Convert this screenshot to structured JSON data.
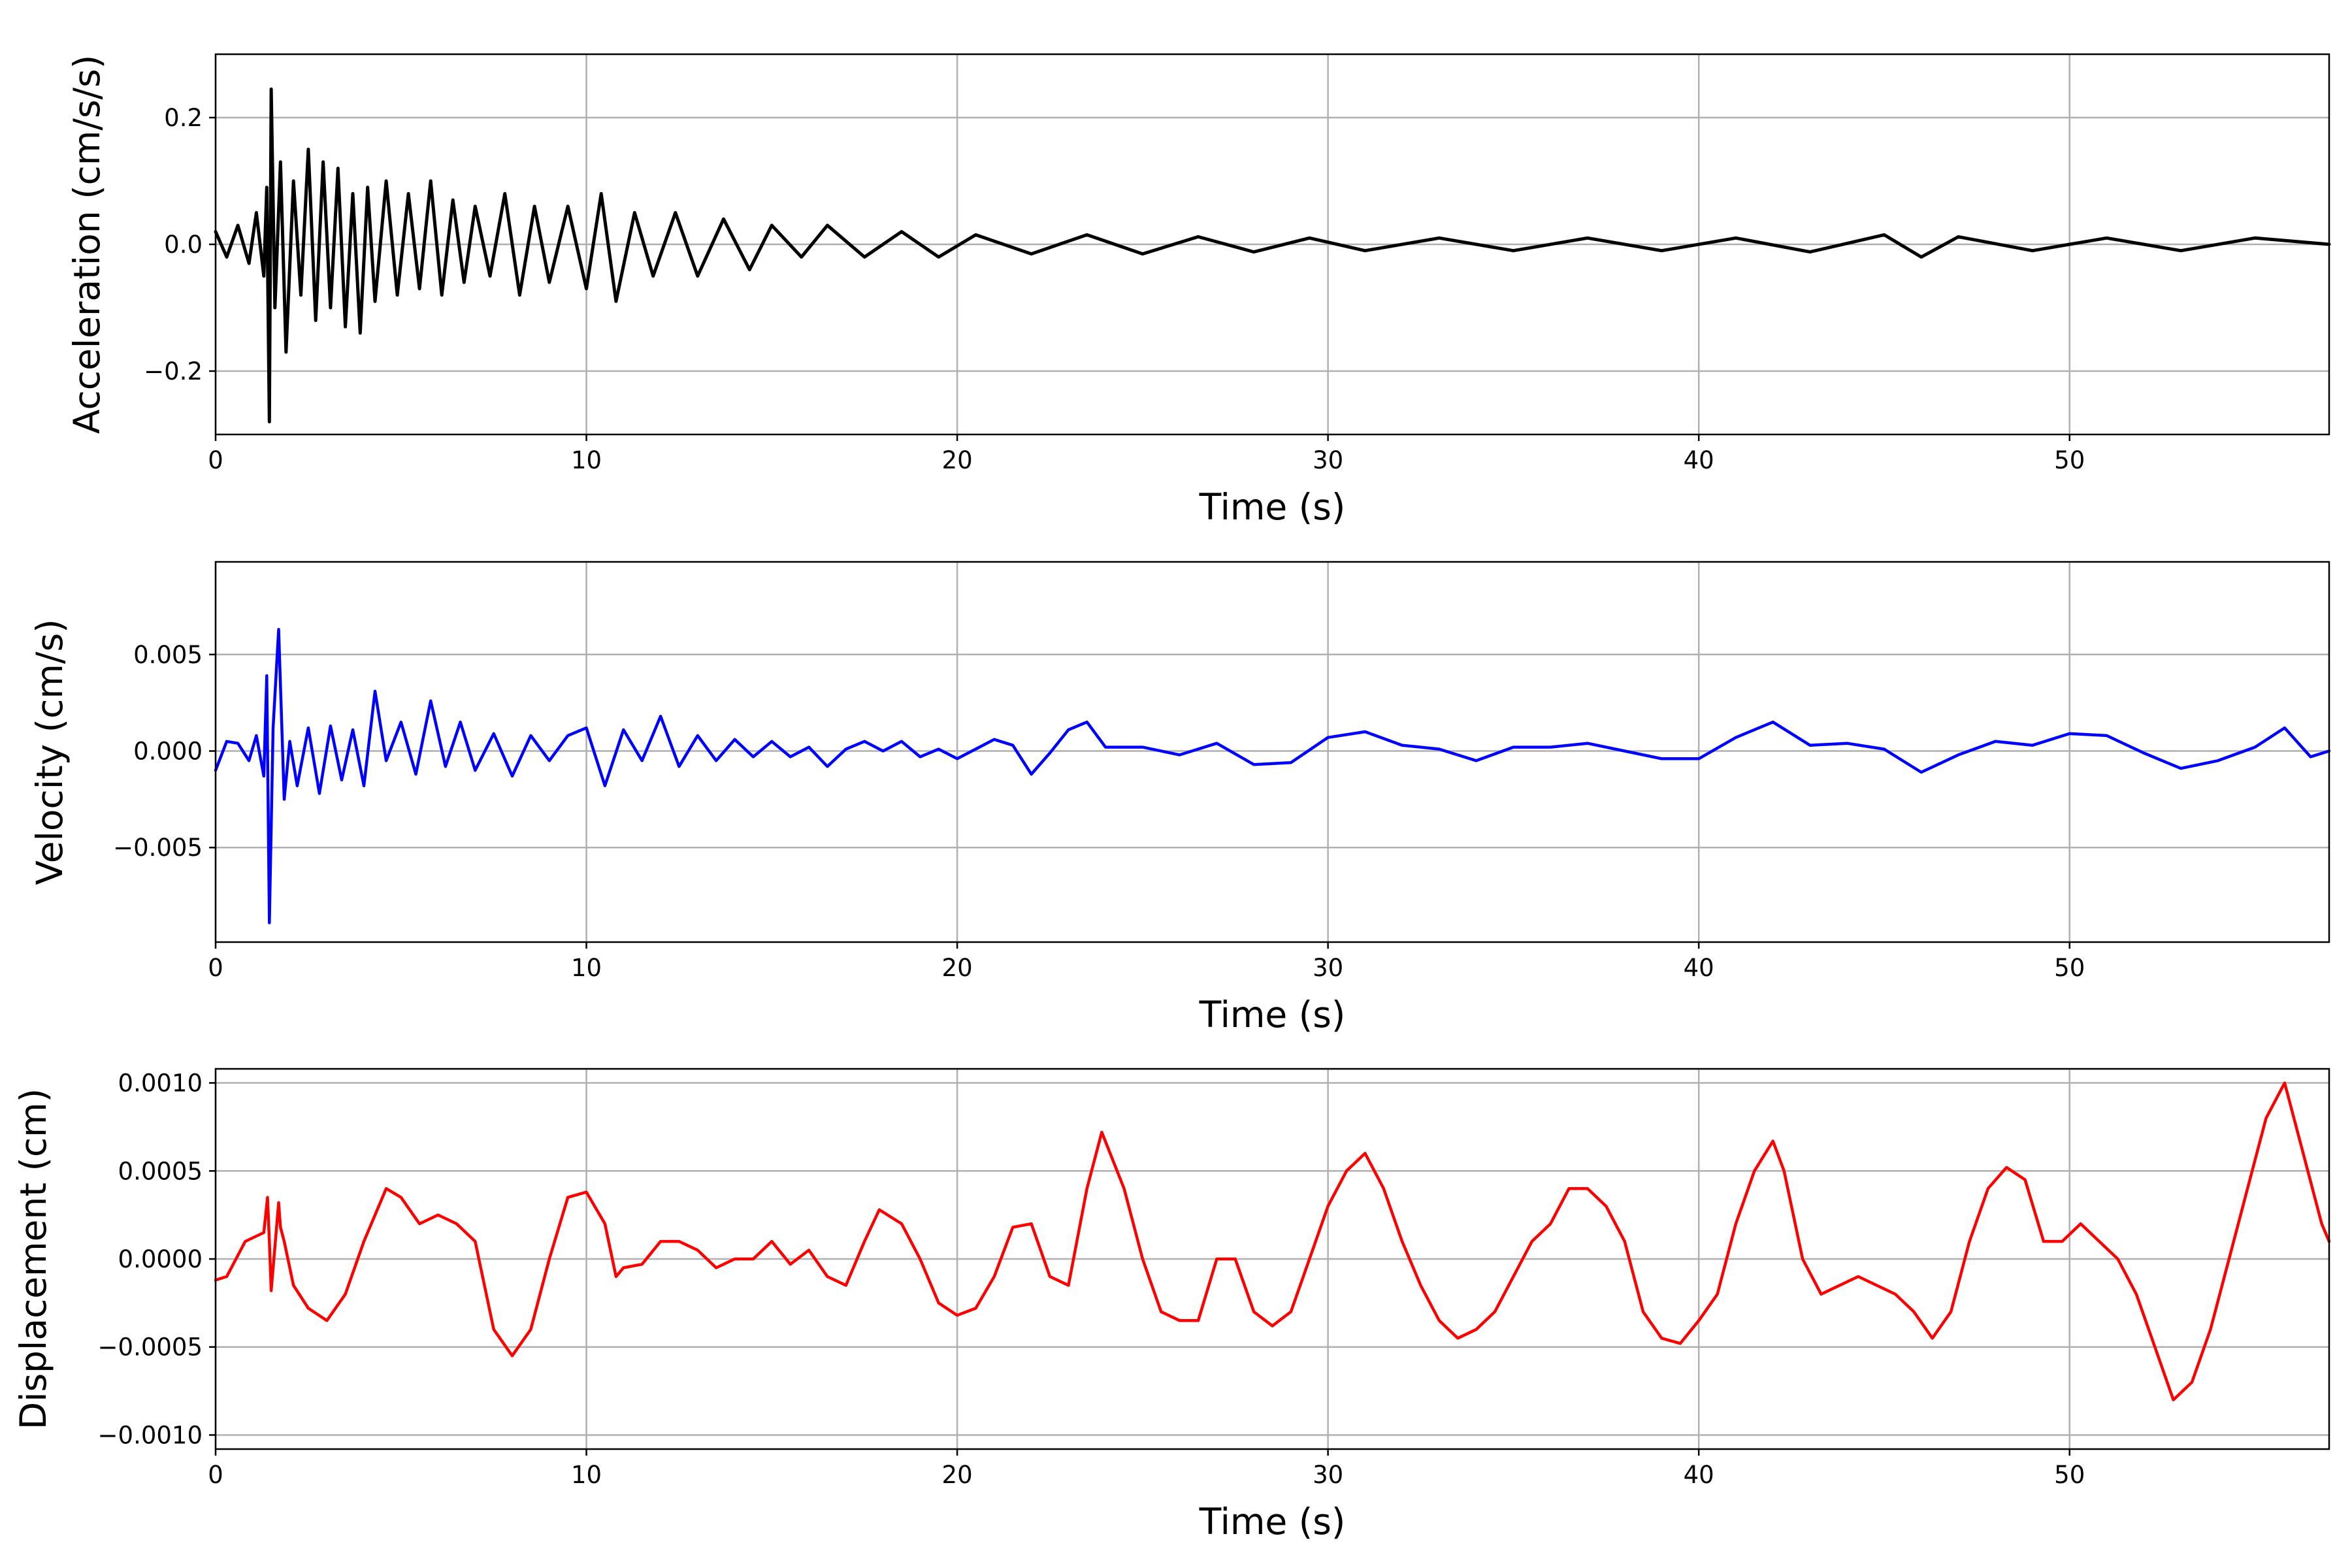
{
  "chart_data": [
    {
      "type": "line",
      "xlabel": "Time (s)",
      "ylabel": "Acceleration (cm/s/s)",
      "xlim": [
        0,
        57
      ],
      "ylim": [
        -0.3,
        0.3
      ],
      "xticks": [
        0,
        10,
        20,
        30,
        40,
        50
      ],
      "yticks": [
        -0.2,
        0.0,
        0.2
      ],
      "ytick_labels": [
        "−0.2",
        "0.0",
        "0.2"
      ],
      "grid": true,
      "color": "#000000",
      "series": [
        {
          "x": [
            0,
            0.3,
            0.6,
            0.9,
            1.1,
            1.3,
            1.38,
            1.45,
            1.5,
            1.6,
            1.75,
            1.9,
            2.1,
            2.3,
            2.5,
            2.7,
            2.9,
            3.1,
            3.3,
            3.5,
            3.7,
            3.9,
            4.1,
            4.3,
            4.6,
            4.9,
            5.2,
            5.5,
            5.8,
            6.1,
            6.4,
            6.7,
            7.0,
            7.4,
            7.8,
            8.2,
            8.6,
            9.0,
            9.5,
            10.0,
            10.4,
            10.8,
            11.3,
            11.8,
            12.4,
            13.0,
            13.7,
            14.4,
            15.0,
            15.8,
            16.5,
            17.5,
            18.5,
            19.5,
            20.5,
            22.0,
            23.5,
            25.0,
            26.5,
            28.0,
            29.5,
            31.0,
            33.0,
            35.0,
            37.0,
            39.0,
            41.0,
            43.0,
            45.0,
            46.0,
            47.0,
            49.0,
            51.0,
            53.0,
            55.0,
            57.0
          ],
          "y": [
            0.02,
            -0.02,
            0.03,
            -0.03,
            0.05,
            -0.05,
            0.09,
            -0.28,
            0.245,
            -0.1,
            0.13,
            -0.17,
            0.1,
            -0.08,
            0.15,
            -0.12,
            0.13,
            -0.1,
            0.12,
            -0.13,
            0.08,
            -0.14,
            0.09,
            -0.09,
            0.1,
            -0.08,
            0.08,
            -0.07,
            0.1,
            -0.08,
            0.07,
            -0.06,
            0.06,
            -0.05,
            0.08,
            -0.08,
            0.06,
            -0.06,
            0.06,
            -0.07,
            0.08,
            -0.09,
            0.05,
            -0.05,
            0.05,
            -0.05,
            0.04,
            -0.04,
            0.03,
            -0.02,
            0.03,
            -0.02,
            0.02,
            -0.02,
            0.015,
            -0.015,
            0.015,
            -0.015,
            0.012,
            -0.012,
            0.01,
            -0.01,
            0.01,
            -0.01,
            0.01,
            -0.01,
            0.01,
            -0.012,
            0.015,
            -0.02,
            0.012,
            -0.01,
            0.01,
            -0.01,
            0.01,
            0.0
          ]
        }
      ]
    },
    {
      "type": "line",
      "xlabel": "Time (s)",
      "ylabel": "Velocity (cm/s)",
      "xlim": [
        0,
        57
      ],
      "ylim": [
        -0.0099,
        0.0098
      ],
      "xticks": [
        0,
        10,
        20,
        30,
        40,
        50
      ],
      "yticks": [
        -0.005,
        0.0,
        0.005
      ],
      "ytick_labels": [
        "−0.005",
        "0.000",
        "0.005"
      ],
      "grid": true,
      "color": "#0000ff",
      "series": [
        {
          "x": [
            0,
            0.3,
            0.6,
            0.9,
            1.1,
            1.3,
            1.38,
            1.45,
            1.55,
            1.7,
            1.85,
            2.0,
            2.2,
            2.5,
            2.8,
            3.1,
            3.4,
            3.7,
            4.0,
            4.3,
            4.6,
            5.0,
            5.4,
            5.8,
            6.2,
            6.6,
            7.0,
            7.5,
            8.0,
            8.5,
            9.0,
            9.5,
            10.0,
            10.5,
            11.0,
            11.5,
            12.0,
            12.5,
            13.0,
            13.5,
            14.0,
            14.5,
            15.0,
            15.5,
            16.0,
            16.5,
            17.0,
            17.5,
            18.0,
            18.5,
            19.0,
            19.5,
            20.0,
            21.0,
            21.5,
            22.0,
            22.5,
            23.0,
            23.5,
            24.0,
            25.0,
            26.0,
            27.0,
            28.0,
            29.0,
            30.0,
            31.0,
            32.0,
            33.0,
            34.0,
            35.0,
            36.0,
            37.0,
            38.0,
            39.0,
            40.0,
            41.0,
            42.0,
            43.0,
            44.0,
            45.0,
            46.0,
            47.0,
            48.0,
            49.0,
            50.0,
            51.0,
            52.0,
            53.0,
            54.0,
            55.0,
            55.8,
            56.5,
            57.0
          ],
          "y": [
            -0.001,
            0.0005,
            0.0004,
            -0.0005,
            0.0008,
            -0.0013,
            0.0039,
            -0.0089,
            0.0012,
            0.0063,
            -0.0025,
            0.0005,
            -0.0018,
            0.0012,
            -0.0022,
            0.0013,
            -0.0015,
            0.0011,
            -0.0018,
            0.0031,
            -0.0005,
            0.0015,
            -0.0012,
            0.0026,
            -0.0008,
            0.0015,
            -0.001,
            0.0009,
            -0.0013,
            0.0008,
            -0.0005,
            0.0008,
            0.0012,
            -0.0018,
            0.0011,
            -0.0005,
            0.0018,
            -0.0008,
            0.0008,
            -0.0005,
            0.0006,
            -0.0003,
            0.0005,
            -0.0003,
            0.0002,
            -0.0008,
            0.0001,
            0.0005,
            0.0,
            0.0005,
            -0.0003,
            0.0001,
            -0.0004,
            0.0006,
            0.0003,
            -0.0012,
            -0.0001,
            0.0011,
            0.0015,
            0.0002,
            0.0002,
            -0.0002,
            0.0004,
            -0.0007,
            -0.0006,
            0.0007,
            0.001,
            0.0003,
            0.0001,
            -0.0005,
            0.0002,
            0.0002,
            0.0004,
            0.0,
            -0.0004,
            -0.0004,
            0.0007,
            0.0015,
            0.0003,
            0.0004,
            0.0001,
            -0.0011,
            -0.0002,
            0.0005,
            0.0003,
            0.0009,
            0.0008,
            -0.0001,
            -0.0009,
            -0.0005,
            0.0002,
            0.0012,
            -0.0003,
            0.0
          ]
        }
      ]
    },
    {
      "type": "line",
      "xlabel": "Time (s)",
      "ylabel": "Displacement (cm)",
      "xlim": [
        0,
        57
      ],
      "ylim": [
        -0.00108,
        0.00108
      ],
      "xticks": [
        0,
        10,
        20,
        30,
        40,
        50
      ],
      "yticks": [
        -0.001,
        -0.0005,
        0.0,
        0.0005,
        0.001
      ],
      "ytick_labels": [
        "−0.0010",
        "−0.0005",
        "0.0000",
        "0.0005",
        "0.0010"
      ],
      "grid": true,
      "color": "#ff0000",
      "series": [
        {
          "x": [
            0,
            0.3,
            0.8,
            1.3,
            1.4,
            1.45,
            1.5,
            1.7,
            1.75,
            1.85,
            2.1,
            2.5,
            3.0,
            3.5,
            4.0,
            4.6,
            5.0,
            5.5,
            6.0,
            6.5,
            7.0,
            7.5,
            8.0,
            8.5,
            9.0,
            9.5,
            10.0,
            10.5,
            10.8,
            11.0,
            11.5,
            12.0,
            12.5,
            13.0,
            13.5,
            14.0,
            14.5,
            15.0,
            15.5,
            16.0,
            16.5,
            17.0,
            17.5,
            17.9,
            18.5,
            19.0,
            19.5,
            20.0,
            20.5,
            21.0,
            21.5,
            22.0,
            22.5,
            23.0,
            23.5,
            23.9,
            24.5,
            25.0,
            25.5,
            26.0,
            26.5,
            27.0,
            27.5,
            28.0,
            28.5,
            29.0,
            29.5,
            30.0,
            30.5,
            31.0,
            31.5,
            32.0,
            32.5,
            33.0,
            33.5,
            34.0,
            34.5,
            35.0,
            35.5,
            36.0,
            36.5,
            37.0,
            37.5,
            38.0,
            38.5,
            39.0,
            39.5,
            40.0,
            40.5,
            41.0,
            41.5,
            42.0,
            42.3,
            42.8,
            43.3,
            43.8,
            44.3,
            44.8,
            45.3,
            45.8,
            46.3,
            46.8,
            47.3,
            47.8,
            48.3,
            48.8,
            49.3,
            49.8,
            50.3,
            50.8,
            51.3,
            51.8,
            52.3,
            52.8,
            53.3,
            53.8,
            54.3,
            54.8,
            55.3,
            55.8,
            56.3,
            56.8,
            57.0
          ],
          "y": [
            -0.00012,
            -0.0001,
            0.0001,
            0.00015,
            0.00035,
            0.0001,
            -0.00018,
            0.00032,
            0.00018,
            0.0001,
            -0.00015,
            -0.00028,
            -0.00035,
            -0.0002,
            0.0001,
            0.0004,
            0.00035,
            0.0002,
            0.00025,
            0.0002,
            0.0001,
            -0.0004,
            -0.00055,
            -0.0004,
            0.0,
            0.00035,
            0.00038,
            0.0002,
            -0.0001,
            -5e-05,
            -3e-05,
            0.0001,
            0.0001,
            5e-05,
            -5e-05,
            0.0,
            0.0,
            0.0001,
            -3e-05,
            5e-05,
            -0.0001,
            -0.00015,
            0.0001,
            0.00028,
            0.0002,
            0.0,
            -0.00025,
            -0.00032,
            -0.00028,
            -0.0001,
            0.00018,
            0.0002,
            -0.0001,
            -0.00015,
            0.0004,
            0.00072,
            0.0004,
            0.0,
            -0.0003,
            -0.00035,
            -0.00035,
            0.0,
            0.0,
            -0.0003,
            -0.00038,
            -0.0003,
            0.0,
            0.0003,
            0.0005,
            0.0006,
            0.0004,
            0.0001,
            -0.00015,
            -0.00035,
            -0.00045,
            -0.0004,
            -0.0003,
            -0.0001,
            0.0001,
            0.0002,
            0.0004,
            0.0004,
            0.0003,
            0.0001,
            -0.0003,
            -0.00045,
            -0.00048,
            -0.00035,
            -0.0002,
            0.0002,
            0.0005,
            0.00067,
            0.0005,
            0.0,
            -0.0002,
            -0.00015,
            -0.0001,
            -0.00015,
            -0.0002,
            -0.0003,
            -0.00045,
            -0.0003,
            0.0001,
            0.0004,
            0.00052,
            0.00045,
            0.0001,
            0.0001,
            0.0002,
            0.0001,
            0.0,
            -0.0002,
            -0.0005,
            -0.0008,
            -0.0007,
            -0.0004,
            0.0,
            0.0004,
            0.0008,
            0.001,
            0.0006,
            0.0002,
            0.0001
          ]
        }
      ]
    }
  ]
}
